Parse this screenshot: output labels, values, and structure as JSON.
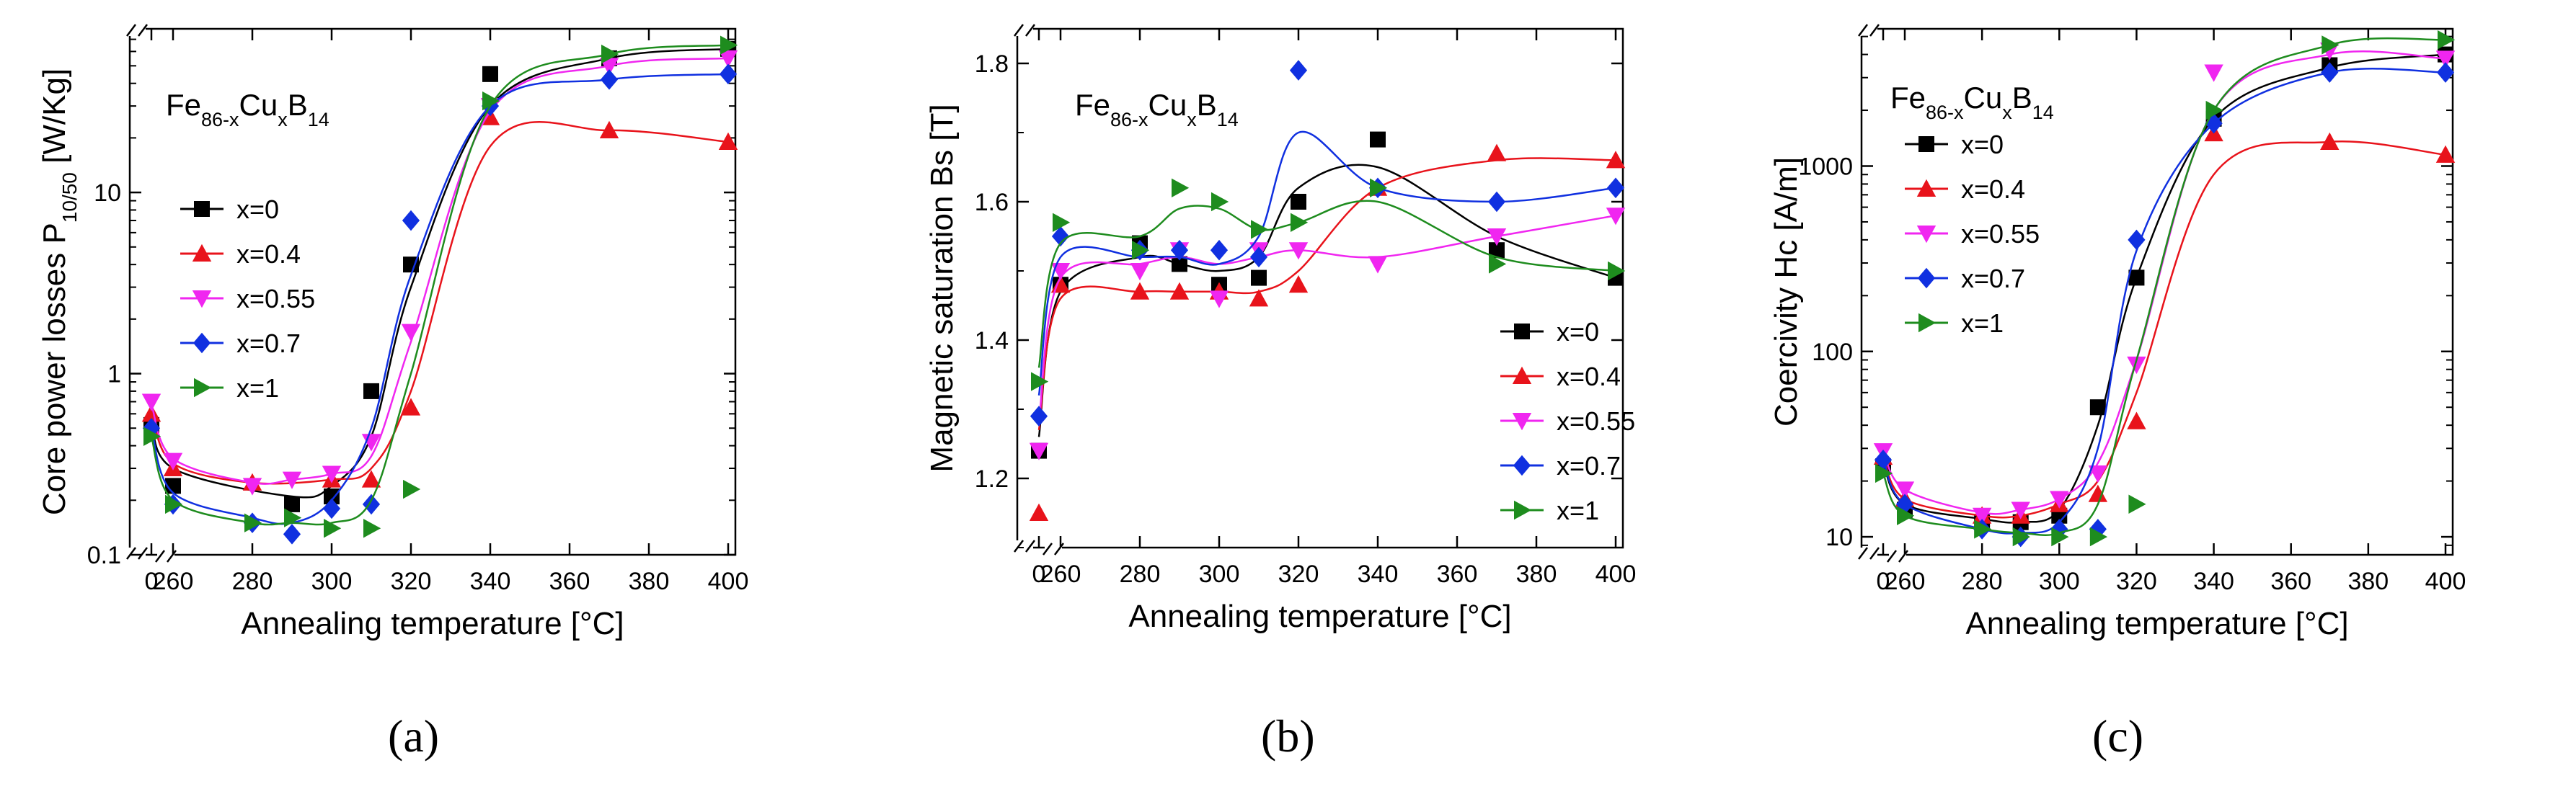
{
  "series_colors": [
    "#000000",
    "#e8131b",
    "#f026f0",
    "#1030e0",
    "#1e8c1e"
  ],
  "series_markers": [
    "square",
    "triangle-up",
    "triangle-down",
    "diamond",
    "triangle-right"
  ],
  "chart_data": [
    {
      "id": "a",
      "type": "scatter",
      "caption": "(a)",
      "formula": {
        "base": "Fe",
        "sub1": "86-x",
        "mid": "Cu",
        "sub2": "x",
        "tail": "B",
        "sub3": "14"
      },
      "xlabel": "Annealing temperature [°C]",
      "ylabel_main": "Core power losses P",
      "ylabel_sub": "10/50",
      "ylabel_unit": " [W/Kg]",
      "yscale": "log",
      "ylim": [
        0.1,
        80
      ],
      "yticks": [
        0.1,
        1,
        10
      ],
      "yticklabels": [
        "0.1",
        "1",
        "10"
      ],
      "xticks": [
        0,
        260,
        280,
        300,
        320,
        340,
        360,
        380,
        400
      ],
      "xticklabels": [
        "0",
        "260",
        "280",
        "300",
        "320",
        "340",
        "360",
        "380",
        "400"
      ],
      "legend_position": "top-left",
      "series": [
        {
          "name": "x=0",
          "x": [
            0,
            260,
            290,
            300,
            310,
            320,
            340,
            370,
            400
          ],
          "values": [
            0.52,
            0.24,
            0.19,
            0.21,
            0.8,
            4.0,
            45,
            55,
            62
          ],
          "curve": [
            0.58,
            0.3,
            0.21,
            0.24,
            0.45,
            3.0,
            30,
            55,
            62
          ]
        },
        {
          "name": "x=0.4",
          "x": [
            0,
            260,
            280,
            300,
            310,
            320,
            340,
            370,
            400
          ],
          "values": [
            0.6,
            0.3,
            0.25,
            0.26,
            0.26,
            0.65,
            26,
            22,
            19
          ],
          "curve": [
            0.62,
            0.32,
            0.25,
            0.26,
            0.3,
            0.8,
            18,
            22,
            19
          ]
        },
        {
          "name": "x=0.55",
          "x": [
            0,
            260,
            280,
            290,
            300,
            310,
            320,
            340,
            370,
            400
          ],
          "values": [
            0.7,
            0.33,
            0.24,
            0.26,
            0.28,
            0.42,
            1.7,
            30,
            50,
            55
          ],
          "curve": [
            0.68,
            0.34,
            0.25,
            0.26,
            0.28,
            0.35,
            1.5,
            28,
            50,
            55
          ]
        },
        {
          "name": "x=0.7",
          "x": [
            0,
            260,
            280,
            290,
            300,
            310,
            320,
            340,
            370,
            400
          ],
          "values": [
            0.5,
            0.19,
            0.15,
            0.13,
            0.18,
            0.19,
            7.0,
            30,
            42,
            45
          ],
          "curve": [
            0.5,
            0.22,
            0.16,
            0.15,
            0.2,
            0.5,
            3.5,
            30,
            42,
            45
          ]
        },
        {
          "name": "x=1",
          "x": [
            0,
            260,
            280,
            290,
            300,
            310,
            320,
            340,
            370,
            400
          ],
          "values": [
            0.45,
            0.19,
            0.15,
            0.16,
            0.14,
            0.14,
            0.23,
            32,
            58,
            65
          ],
          "curve": [
            0.45,
            0.2,
            0.15,
            0.15,
            0.15,
            0.2,
            1.0,
            30,
            58,
            65
          ]
        }
      ]
    },
    {
      "id": "b",
      "type": "scatter",
      "caption": "(b)",
      "formula": {
        "base": "Fe",
        "sub1": "86-x",
        "mid": "Cu",
        "sub2": "x",
        "tail": "B",
        "sub3": "14"
      },
      "xlabel": "Annealing temperature [°C]",
      "ylabel_main": "Magnetic saturation Bs [T]",
      "ylabel_sub": "",
      "ylabel_unit": "",
      "yscale": "linear",
      "ylim": [
        1.1,
        1.85
      ],
      "yticks": [
        1.2,
        1.4,
        1.6,
        1.8
      ],
      "yticklabels": [
        "1.2",
        "1.4",
        "1.6",
        "1.8"
      ],
      "xticks": [
        0,
        260,
        280,
        300,
        320,
        340,
        360,
        380,
        400
      ],
      "xticklabels": [
        "0",
        "260",
        "280",
        "300",
        "320",
        "340",
        "360",
        "380",
        "400"
      ],
      "legend_position": "bottom-right",
      "series": [
        {
          "name": "x=0",
          "x": [
            0,
            260,
            280,
            290,
            300,
            310,
            320,
            340,
            370,
            400
          ],
          "values": [
            1.24,
            1.48,
            1.54,
            1.51,
            1.48,
            1.49,
            1.6,
            1.69,
            1.53,
            1.49
          ],
          "curve": [
            1.26,
            1.47,
            1.52,
            1.51,
            1.5,
            1.52,
            1.62,
            1.65,
            1.55,
            1.49
          ]
        },
        {
          "name": "x=0.4",
          "x": [
            0,
            260,
            280,
            290,
            300,
            310,
            320,
            340,
            370,
            400
          ],
          "values": [
            1.15,
            1.48,
            1.47,
            1.47,
            1.47,
            1.46,
            1.48,
            1.62,
            1.67,
            1.66
          ],
          "curve": [
            1.27,
            1.46,
            1.47,
            1.47,
            1.47,
            1.47,
            1.5,
            1.62,
            1.66,
            1.66
          ]
        },
        {
          "name": "x=0.55",
          "x": [
            0,
            260,
            280,
            290,
            300,
            310,
            320,
            340,
            370,
            400
          ],
          "values": [
            1.24,
            1.5,
            1.5,
            1.53,
            1.46,
            1.53,
            1.53,
            1.51,
            1.55,
            1.58
          ],
          "curve": [
            1.28,
            1.49,
            1.51,
            1.52,
            1.51,
            1.52,
            1.53,
            1.52,
            1.55,
            1.58
          ]
        },
        {
          "name": "x=0.7",
          "x": [
            0,
            260,
            280,
            290,
            300,
            310,
            320,
            340,
            370,
            400
          ],
          "values": [
            1.29,
            1.55,
            1.53,
            1.53,
            1.53,
            1.52,
            1.79,
            1.62,
            1.6,
            1.62
          ],
          "curve": [
            1.32,
            1.52,
            1.52,
            1.52,
            1.51,
            1.55,
            1.7,
            1.62,
            1.6,
            1.62
          ]
        },
        {
          "name": "x=1",
          "x": [
            0,
            260,
            280,
            290,
            300,
            310,
            320,
            340,
            370,
            400
          ],
          "values": [
            1.34,
            1.57,
            1.53,
            1.62,
            1.6,
            1.56,
            1.57,
            1.62,
            1.51,
            1.5
          ],
          "curve": [
            1.36,
            1.54,
            1.55,
            1.59,
            1.59,
            1.56,
            1.57,
            1.6,
            1.52,
            1.5
          ]
        }
      ]
    },
    {
      "id": "c",
      "type": "scatter",
      "caption": "(c)",
      "formula": {
        "base": "Fe",
        "sub1": "86-x",
        "mid": "Cu",
        "sub2": "x",
        "tail": "B",
        "sub3": "14"
      },
      "xlabel": "Annealing temperature [°C]",
      "ylabel_main": "Coercivity Hc [A/m]",
      "ylabel_sub": "",
      "ylabel_unit": "",
      "yscale": "log",
      "ylim": [
        8,
        5500
      ],
      "yticks": [
        10,
        100,
        1000
      ],
      "yticklabels": [
        "10",
        "100",
        "1000"
      ],
      "xticks": [
        0,
        260,
        280,
        300,
        320,
        340,
        360,
        380,
        400
      ],
      "xticklabels": [
        "0",
        "260",
        "280",
        "300",
        "320",
        "340",
        "360",
        "380",
        "400"
      ],
      "legend_position": "top-left",
      "series": [
        {
          "name": "x=0",
          "x": [
            0,
            260,
            280,
            290,
            300,
            310,
            320,
            340,
            370,
            400
          ],
          "values": [
            24,
            14,
            12,
            12,
            13,
            50,
            250,
            1800,
            3500,
            4000
          ],
          "curve": [
            25,
            15,
            12.5,
            12,
            14,
            40,
            250,
            1800,
            3400,
            4000
          ]
        },
        {
          "name": "x=0.4",
          "x": [
            0,
            260,
            280,
            290,
            300,
            310,
            320,
            340,
            370,
            400
          ],
          "values": [
            27,
            16,
            13,
            13,
            15,
            17,
            42,
            1500,
            1350,
            1150
          ],
          "curve": [
            27,
            16,
            13,
            13,
            15,
            20,
            60,
            900,
            1350,
            1150
          ]
        },
        {
          "name": "x=0.55",
          "x": [
            0,
            260,
            280,
            290,
            300,
            310,
            320,
            340,
            370,
            400
          ],
          "values": [
            29,
            18,
            13,
            14,
            16,
            22,
            85,
            3200,
            4200,
            3800
          ],
          "curve": [
            29,
            18,
            13.5,
            14,
            16,
            25,
            90,
            2000,
            4000,
            3800
          ]
        },
        {
          "name": "x=0.7",
          "x": [
            0,
            260,
            280,
            290,
            300,
            310,
            320,
            340,
            370,
            400
          ],
          "values": [
            26,
            15,
            11,
            10,
            11,
            11,
            400,
            1700,
            3200,
            3200
          ],
          "curve": [
            26,
            15,
            11,
            10.5,
            12,
            30,
            350,
            1700,
            3200,
            3200
          ]
        },
        {
          "name": "x=1",
          "x": [
            0,
            260,
            280,
            290,
            300,
            310,
            320,
            340,
            370,
            400
          ],
          "values": [
            22,
            13,
            11,
            10,
            10,
            10,
            15,
            2000,
            4500,
            4800
          ],
          "curve": [
            22,
            13,
            11,
            10.5,
            10.5,
            15,
            90,
            2000,
            4500,
            4800
          ]
        }
      ]
    }
  ]
}
